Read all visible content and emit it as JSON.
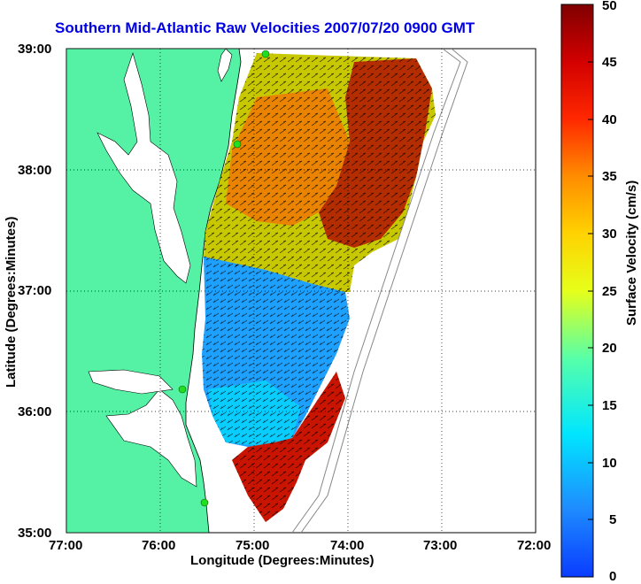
{
  "title": "Southern Mid-Atlantic Raw Velocities 2007/07/20 0900 GMT",
  "xlabel": "Longitude (Degrees:Minutes)",
  "ylabel": "Latitude (Degrees:Minutes)",
  "colorbar": {
    "label": "Surface Velocity (cm/s)",
    "min": 0,
    "max": 50,
    "ticks": [
      "50",
      "45",
      "40",
      "35",
      "30",
      "25",
      "20",
      "15",
      "10",
      "5",
      "0"
    ]
  },
  "axes": {
    "x_ticks": [
      "77:00",
      "76:00",
      "75:00",
      "74:00",
      "73:00",
      "72:00"
    ],
    "y_ticks": [
      "39:00",
      "38:00",
      "37:00",
      "36:00",
      "35:00"
    ],
    "xlim": [
      -77,
      -72
    ],
    "ylim": [
      35,
      39
    ],
    "grid": "dotted"
  },
  "colors": {
    "land": "#55f2a5",
    "coastline": "#000000",
    "title": "#0000e6",
    "station_marker": "#22dd22"
  },
  "map": {
    "type": "surface current velocity map",
    "stations": 4
  }
}
